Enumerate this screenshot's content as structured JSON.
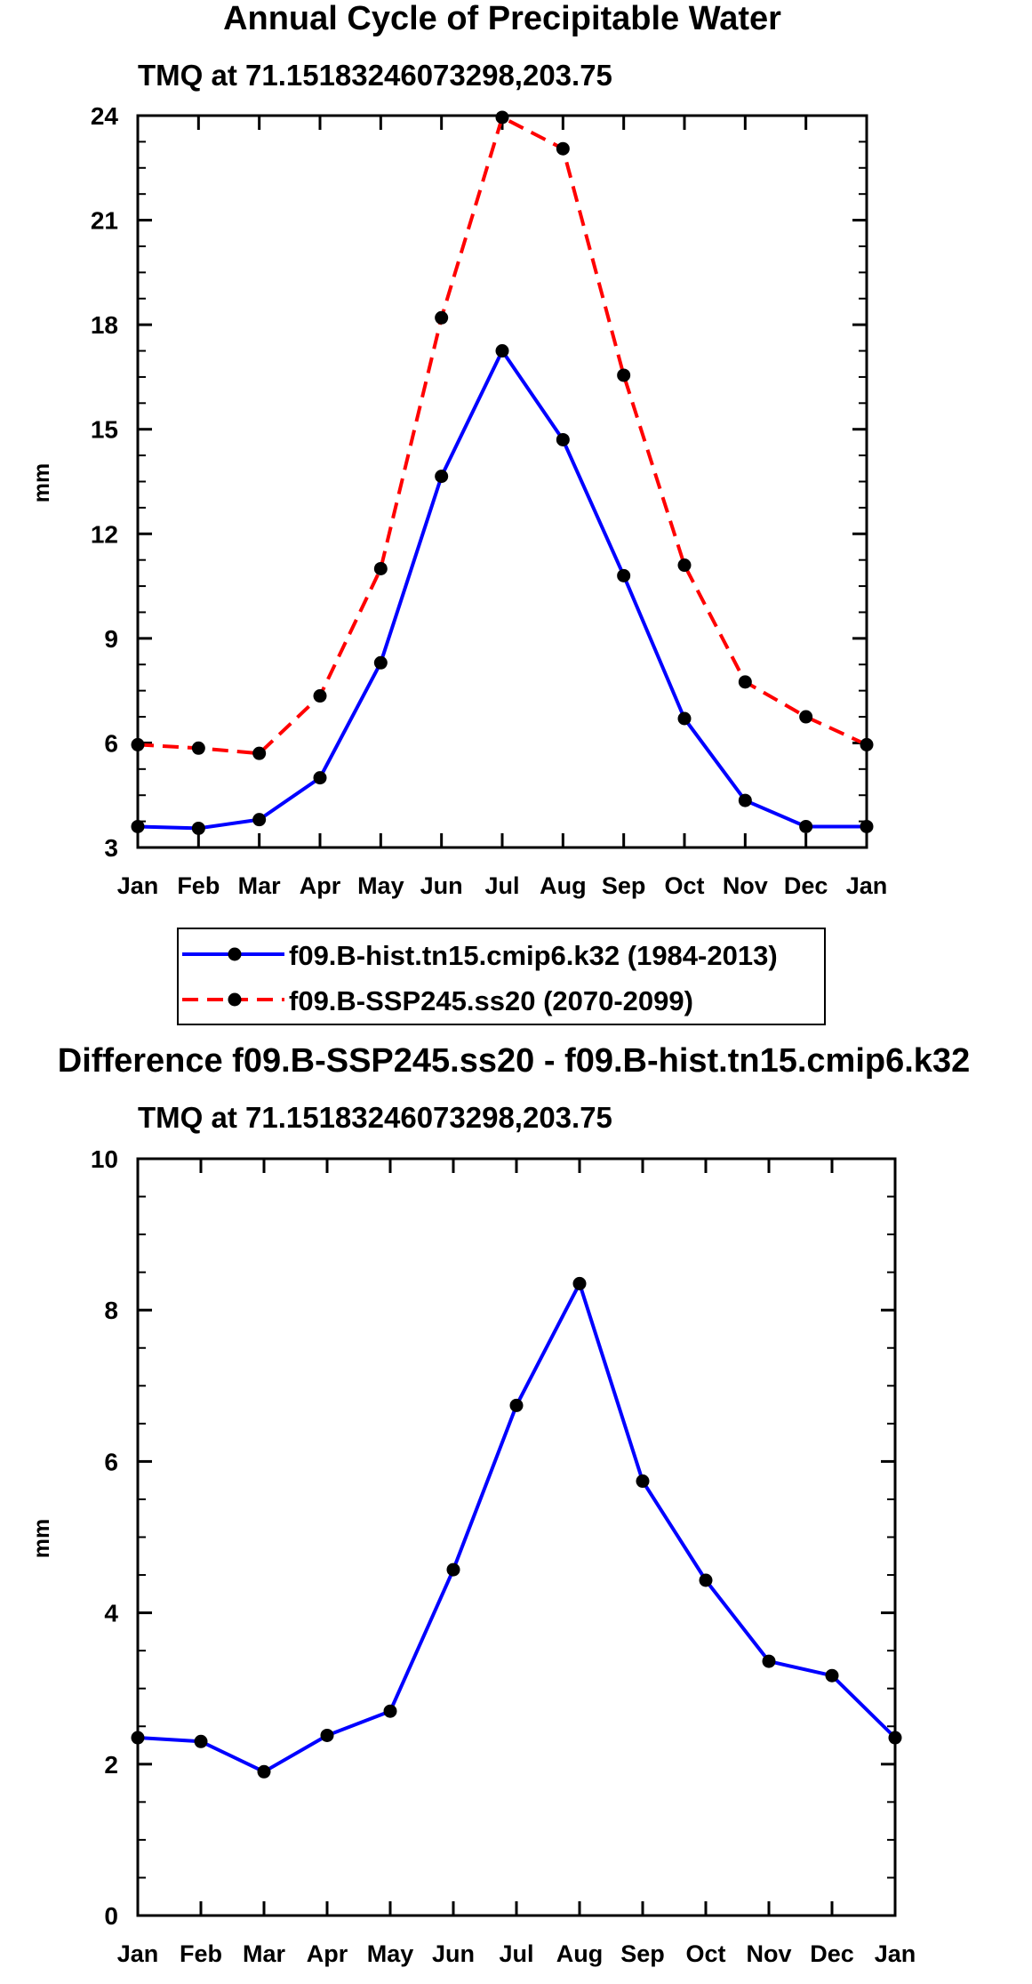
{
  "chart_data": [
    {
      "type": "line",
      "title": "Annual Cycle of Precipitable Water",
      "subtitle": "TMQ at 71.15183246073298,203.75",
      "ylabel": "mm",
      "xlabel": "",
      "categories": [
        "Jan",
        "Feb",
        "Mar",
        "Apr",
        "May",
        "Jun",
        "Jul",
        "Aug",
        "Sep",
        "Oct",
        "Nov",
        "Dec",
        "Jan"
      ],
      "ylim": [
        3,
        24
      ],
      "yticks": [
        "3",
        "6",
        "9",
        "12",
        "15",
        "18",
        "21",
        "24"
      ],
      "grid": false,
      "legend_position": "bottom",
      "series": [
        {
          "name": "f09.B-hist.tn15.cmip6.k32 (1984-2013)",
          "color": "#0000ff",
          "dash": "solid",
          "values": [
            3.6,
            3.55,
            3.8,
            5.0,
            8.3,
            13.65,
            17.25,
            14.7,
            10.8,
            6.7,
            4.35,
            3.6,
            3.6
          ]
        },
        {
          "name": "f09.B-SSP245.ss20 (2070-2099)",
          "color": "#ff0000",
          "dash": "dashed",
          "values": [
            5.95,
            5.85,
            5.7,
            7.35,
            11.0,
            18.2,
            23.95,
            23.05,
            16.55,
            11.1,
            7.75,
            6.75,
            5.95
          ]
        }
      ]
    },
    {
      "type": "line",
      "title": "Difference f09.B-SSP245.ss20 - f09.B-hist.tn15.cmip6.k32",
      "subtitle": "TMQ at 71.15183246073298,203.75",
      "ylabel": "mm",
      "xlabel": "",
      "categories": [
        "Jan",
        "Feb",
        "Mar",
        "Apr",
        "May",
        "Jun",
        "Jul",
        "Aug",
        "Sep",
        "Oct",
        "Nov",
        "Dec",
        "Jan"
      ],
      "ylim": [
        0,
        10
      ],
      "yticks": [
        "0",
        "2",
        "4",
        "6",
        "8",
        "10"
      ],
      "grid": false,
      "series": [
        {
          "name": "Difference",
          "color": "#0000ff",
          "dash": "solid",
          "values": [
            2.35,
            2.3,
            1.9,
            2.38,
            2.7,
            4.57,
            6.74,
            8.35,
            5.74,
            4.43,
            3.36,
            3.17,
            2.35
          ]
        }
      ]
    }
  ]
}
